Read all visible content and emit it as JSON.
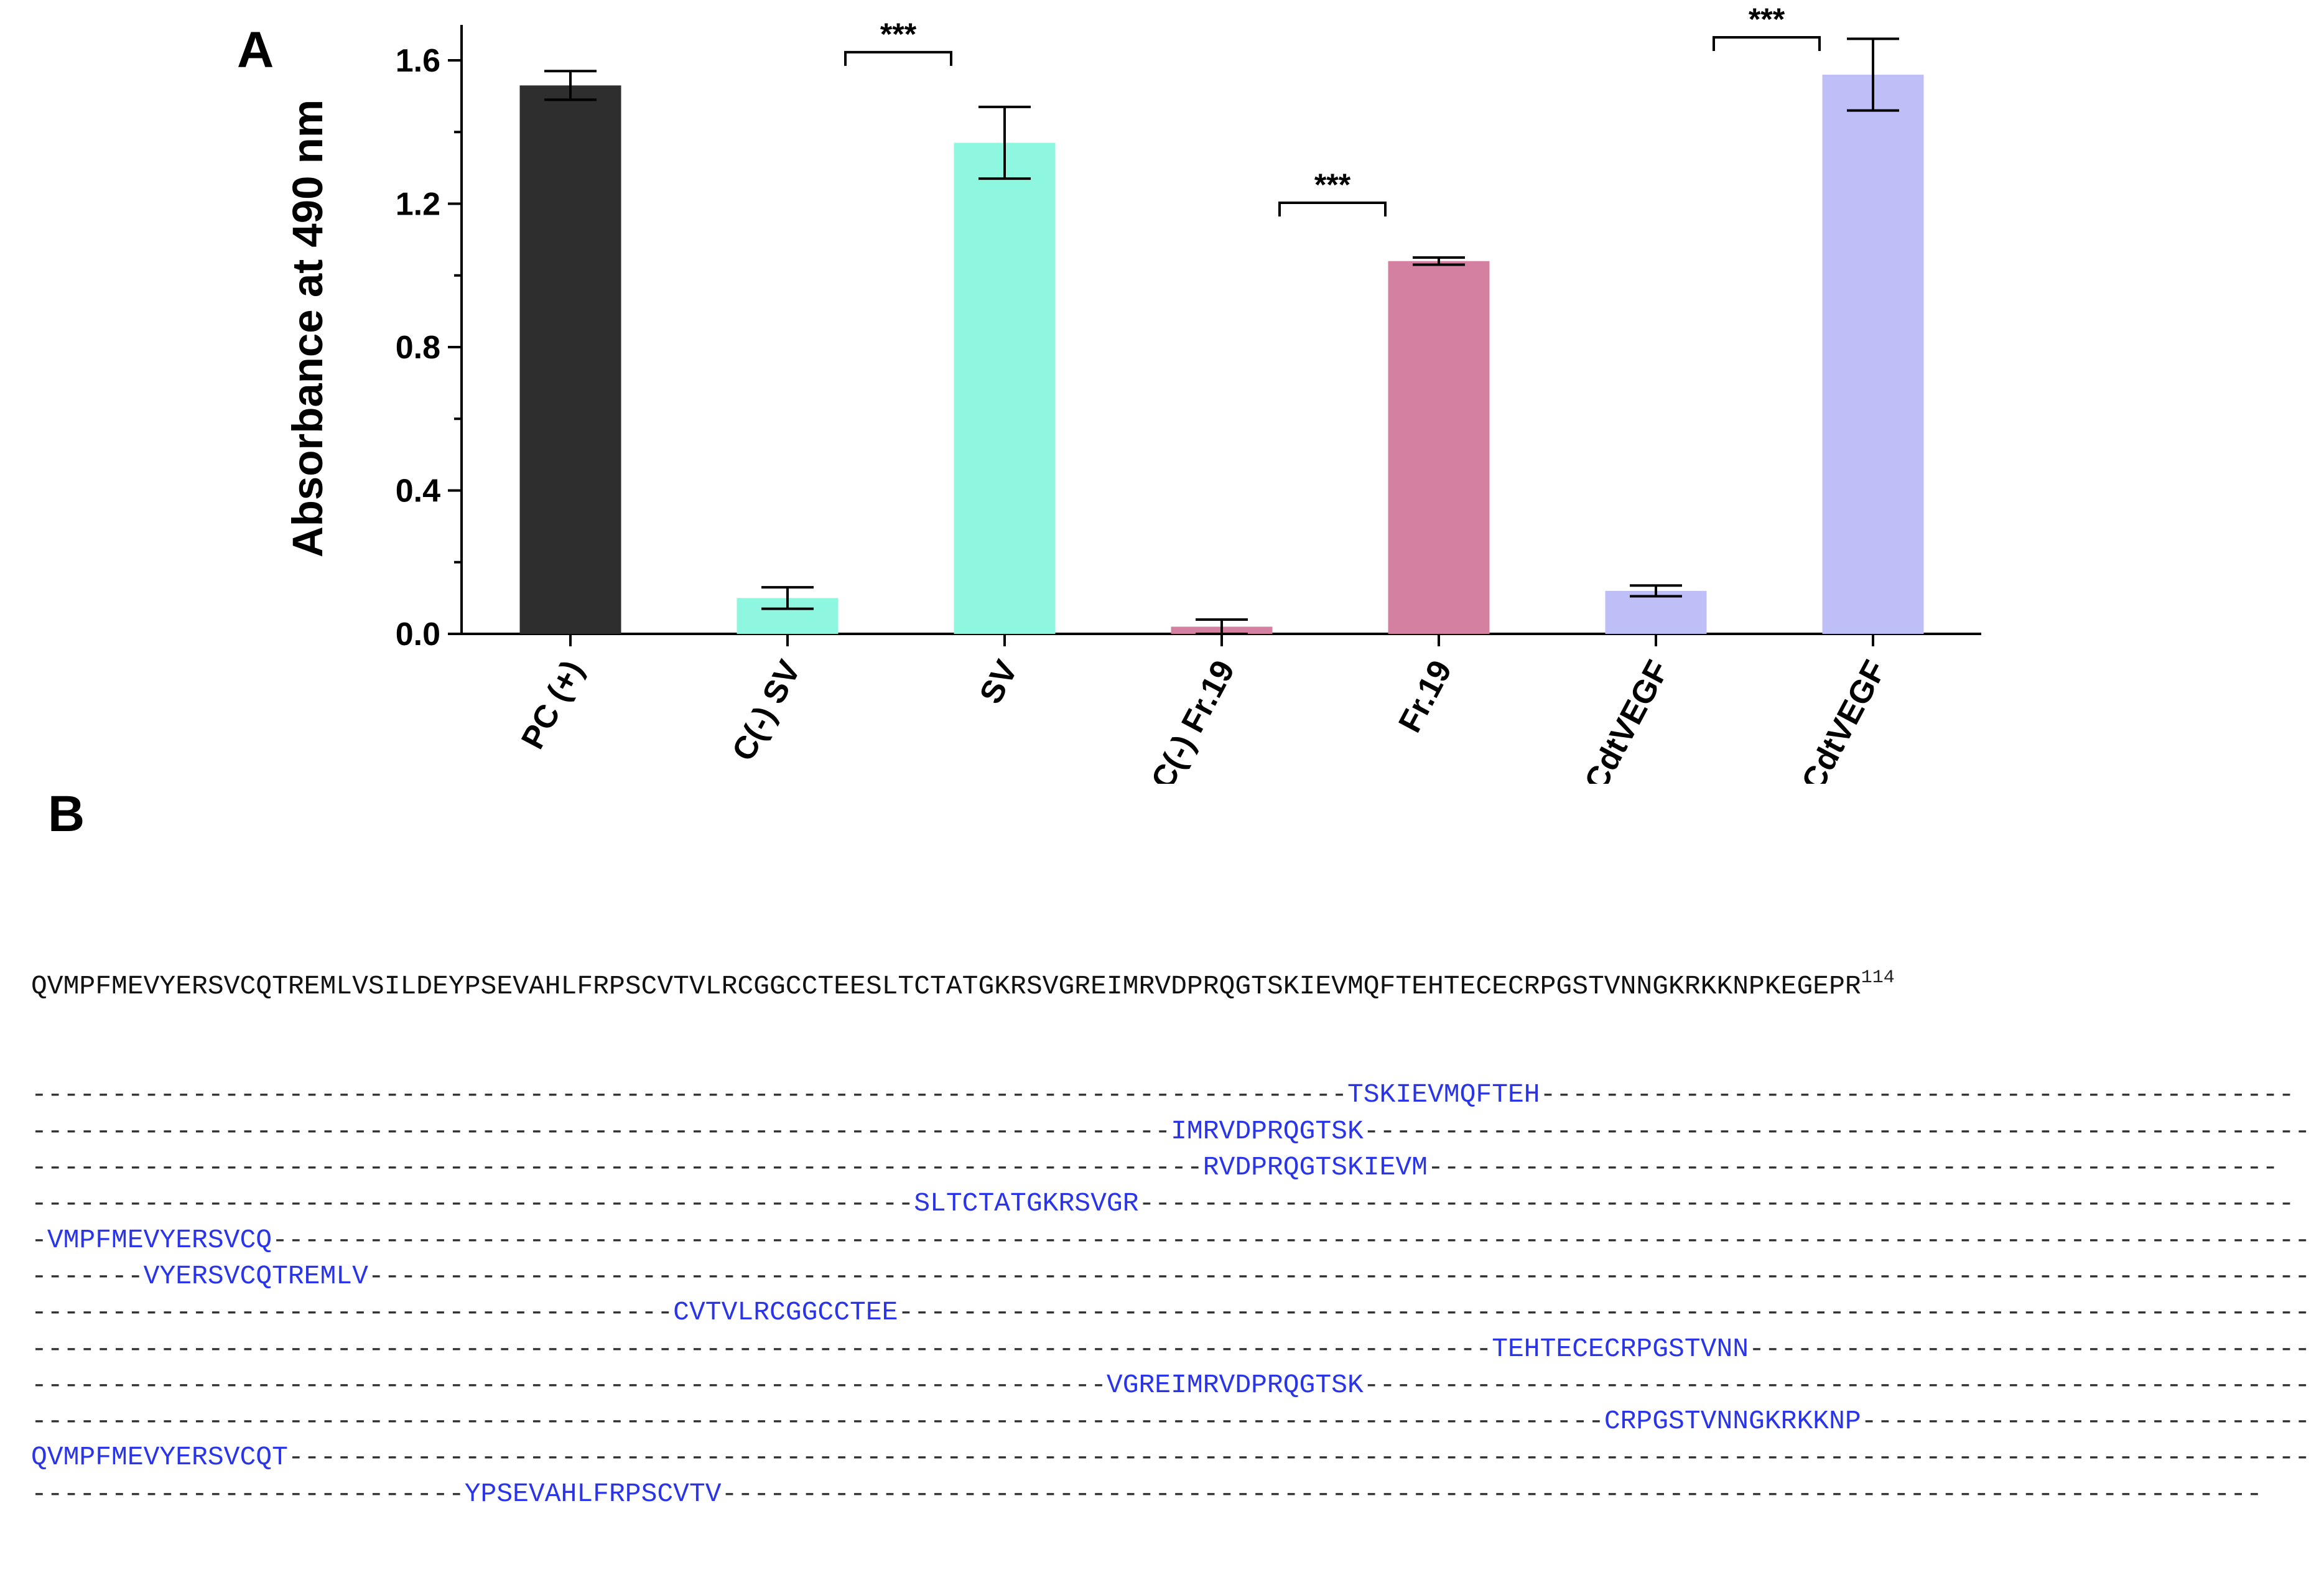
{
  "panels": {
    "a": "A",
    "b": "B"
  },
  "chart_data": {
    "type": "bar",
    "ylabel": "Absorbance at 490 nm",
    "xlabel": "",
    "ylim": [
      0,
      1.6
    ],
    "yticks": [
      "0.0",
      "0.4",
      "0.8",
      "1.2",
      "1.6"
    ],
    "categories": [
      "PC (+)",
      "C(-) SV",
      "SV",
      "C(-) Fr.19",
      "Fr.19",
      "C(-) CdtVEGF",
      "CdtVEGF"
    ],
    "values": [
      1.53,
      0.1,
      1.37,
      0.02,
      1.04,
      0.12,
      1.56
    ],
    "errors": [
      0.04,
      0.03,
      0.1,
      0.02,
      0.01,
      0.015,
      0.1
    ],
    "colors": [
      "#2e2e2e",
      "#8ff7e0",
      "#8ff7e0",
      "#d480a0",
      "#d480a0",
      "#bfbff8",
      "#bfbff8"
    ],
    "significance": [
      {
        "from": "C(-) SV",
        "to": "SV",
        "label": "***"
      },
      {
        "from": "C(-) Fr.19",
        "to": "Fr.19",
        "label": "***"
      },
      {
        "from": "C(-) CdtVEGF",
        "to": "CdtVEGF",
        "label": "***"
      }
    ]
  },
  "sequence": {
    "main": "QVMPFMEVYERSVCQTREMLVSILDEYPSEVAHLFRPSCVTVLRCGGCCTEESLTCTATGKRSVGREIMRVDPRQGTSKIEVMQFTEHTECECRPGSTVNNGKRKKNPKEGEPR",
    "length_label": "114",
    "peptides": [
      {
        "pre": "----------------------------------------------------------------------------------",
        "seq": "TSKIEVMQFTEH",
        "post": "-----------------------------------------------"
      },
      {
        "pre": "-----------------------------------------------------------------------",
        "seq": "IMRVDPRQGTSK",
        "post": "-----------------------------------------------------------"
      },
      {
        "pre": "-------------------------------------------------------------------------",
        "seq": "RVDPRQGTSKIEVM",
        "post": "-----------------------------------------------------"
      },
      {
        "pre": "-------------------------------------------------------",
        "seq": "SLTCTATGKRSVGR",
        "post": "------------------------------------------------------------------------"
      },
      {
        "pre": "-",
        "seq": "VMPFMEVYERSVCQ",
        "post": "------------------------------------------------------------------------------------------------------------------------------------"
      },
      {
        "pre": "-------",
        "seq": "VYERSVCQTREMLV",
        "post": "--------------------------------------------------------------------------------------------------------------------------------------"
      },
      {
        "pre": "----------------------------------------",
        "seq": "CVTVLRCGGCCTEE",
        "post": "-------------------------------------------------------------------------------------------"
      },
      {
        "pre": "-------------------------------------------------------------------------------------------",
        "seq": "TEHTECECRPGSTVNN",
        "post": "-------------------------------------"
      },
      {
        "pre": "-------------------------------------------------------------------",
        "seq": "VGREIMRVDPRQGTSK",
        "post": "------------------------------------------------------------"
      },
      {
        "pre": "--------------------------------------------------------------------------------------------------",
        "seq": "CRPGSTVNNGKRKKNP",
        "post": "-------------------------------"
      },
      {
        "pre": "",
        "seq": "QVMPFMEVYERSVCQT",
        "post": "------------------------------------------------------------------------------------------------------------------------------"
      },
      {
        "pre": "---------------------------",
        "seq": "YPSEVAHLFRPSCVTV",
        "post": "------------------------------------------------------------------------------------------------"
      }
    ]
  }
}
